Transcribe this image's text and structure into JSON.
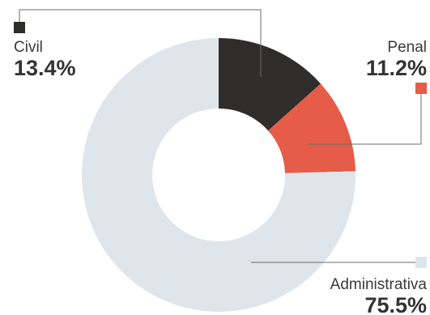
{
  "chart_data": {
    "type": "pie",
    "variant": "donut",
    "start": "12 o'clock, clockwise",
    "slices": [
      {
        "name": "Civil",
        "value": 13.4,
        "label": "13.4%",
        "color": "#2f2c2c"
      },
      {
        "name": "Penal",
        "value": 11.2,
        "label": "11.2%",
        "color": "#e55c49"
      },
      {
        "name": "Administrativa",
        "value": 75.5,
        "label": "75.5%",
        "color": "#dfe6eb"
      }
    ],
    "legend": "inline labels with leader lines"
  }
}
